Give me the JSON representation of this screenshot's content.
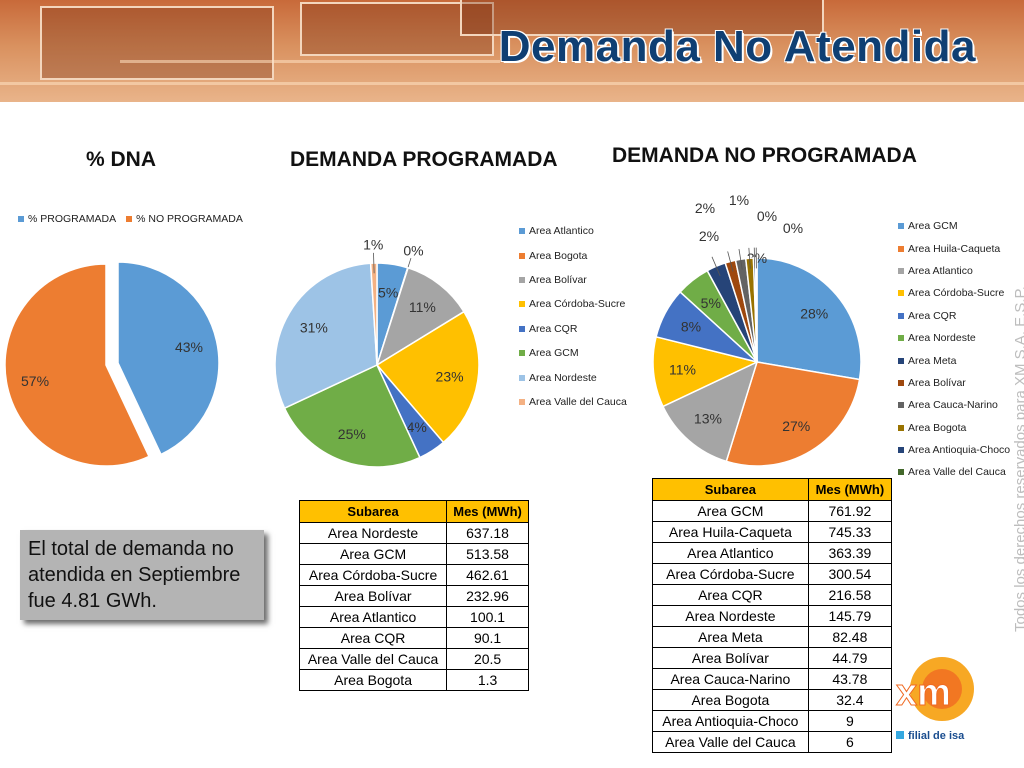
{
  "banner": {
    "title": "Demanda No Atendida"
  },
  "note": {
    "text": "El total de demanda no atendida en Septiembre fue 4.81 GWh."
  },
  "watermark": "Todos los derechos reservados para XM S.A. E.S.P.",
  "logo": {
    "brand": "xm",
    "tagline": "filial de isa",
    "colors": [
      "#f7a824",
      "#f06a22",
      "#35a8e0"
    ]
  },
  "colors": {
    "blue": "#5b9bd5",
    "orange": "#ed7d31",
    "gray": "#a5a5a5",
    "gold": "#ffc000",
    "darkblue": "#4472c4",
    "green": "#70ad47",
    "lightblue": "#9dc3e6",
    "salmon": "#f4b183",
    "navy": "#264478",
    "rust": "#9e480e",
    "darkgray": "#636363",
    "olive": "#997300",
    "darkgreen": "#43682b",
    "header": "#ffc000"
  },
  "chart_data": [
    {
      "type": "pie",
      "title": "% DNA",
      "legend_position": "top",
      "categories": [
        "% PROGRAMADA",
        "% NO PROGRAMADA"
      ],
      "values": [
        43,
        57
      ],
      "labels": [
        "43%",
        "57%"
      ],
      "colors": [
        "#5b9bd5",
        "#ed7d31"
      ],
      "exploded": true
    },
    {
      "type": "pie",
      "title": "DEMANDA PROGRAMADA",
      "legend_position": "right",
      "categories": [
        "Area Atlantico",
        "Area Bogota",
        "Area Bolívar",
        "Area Córdoba-Sucre",
        "Area CQR",
        "Area GCM",
        "Area Nordeste",
        "Area Valle del Cauca"
      ],
      "values": [
        100.1,
        1.3,
        232.96,
        462.61,
        90.1,
        513.58,
        637.18,
        20.5
      ],
      "labels": [
        "5%",
        "0%",
        "11%",
        "23%",
        "4%",
        "25%",
        "31%",
        "1%"
      ],
      "colors": [
        "#5b9bd5",
        "#ed7d31",
        "#a5a5a5",
        "#ffc000",
        "#4472c4",
        "#70ad47",
        "#9dc3e6",
        "#f4b183"
      ]
    },
    {
      "type": "pie",
      "title": "DEMANDA NO PROGRAMADA",
      "legend_position": "right",
      "categories": [
        "Area GCM",
        "Area Huila-Caqueta",
        "Area Atlantico",
        "Area Córdoba-Sucre",
        "Area CQR",
        "Area Nordeste",
        "Area Meta",
        "Area Bolívar",
        "Area Cauca-Narino",
        "Area Bogota",
        "Area Antioquia-Choco",
        "Area Valle del Cauca"
      ],
      "values": [
        761.92,
        745.33,
        363.39,
        300.54,
        216.58,
        145.79,
        82.48,
        44.79,
        43.78,
        32.4,
        9,
        6
      ],
      "labels": [
        "28%",
        "27%",
        "13%",
        "11%",
        "8%",
        "5%",
        "3%",
        "2%",
        "2%",
        "1%",
        "0%",
        "0%"
      ],
      "colors": [
        "#5b9bd5",
        "#ed7d31",
        "#a5a5a5",
        "#ffc000",
        "#4472c4",
        "#70ad47",
        "#264478",
        "#9e480e",
        "#636363",
        "#997300",
        "#264478",
        "#43682b"
      ]
    },
    {
      "type": "table",
      "headers": [
        "Subarea",
        "Mes (MWh)"
      ],
      "rows": [
        [
          "Area Nordeste",
          "637.18"
        ],
        [
          "Area GCM",
          "513.58"
        ],
        [
          "Area Córdoba-Sucre",
          "462.61"
        ],
        [
          "Area Bolívar",
          "232.96"
        ],
        [
          "Area Atlantico",
          "100.1"
        ],
        [
          "Area CQR",
          "90.1"
        ],
        [
          "Area Valle del Cauca",
          "20.5"
        ],
        [
          "Area Bogota",
          "1.3"
        ]
      ]
    },
    {
      "type": "table",
      "headers": [
        "Subarea",
        "Mes (MWh)"
      ],
      "rows": [
        [
          "Area GCM",
          "761.92"
        ],
        [
          "Area Huila-Caqueta",
          "745.33"
        ],
        [
          "Area Atlantico",
          "363.39"
        ],
        [
          "Area Córdoba-Sucre",
          "300.54"
        ],
        [
          "Area CQR",
          "216.58"
        ],
        [
          "Area Nordeste",
          "145.79"
        ],
        [
          "Area Meta",
          "82.48"
        ],
        [
          "Area Bolívar",
          "44.79"
        ],
        [
          "Area Cauca-Narino",
          "43.78"
        ],
        [
          "Area Bogota",
          "32.4"
        ],
        [
          "Area Antioquia-Choco",
          "9"
        ],
        [
          "Area Valle del Cauca",
          "6"
        ]
      ]
    }
  ]
}
